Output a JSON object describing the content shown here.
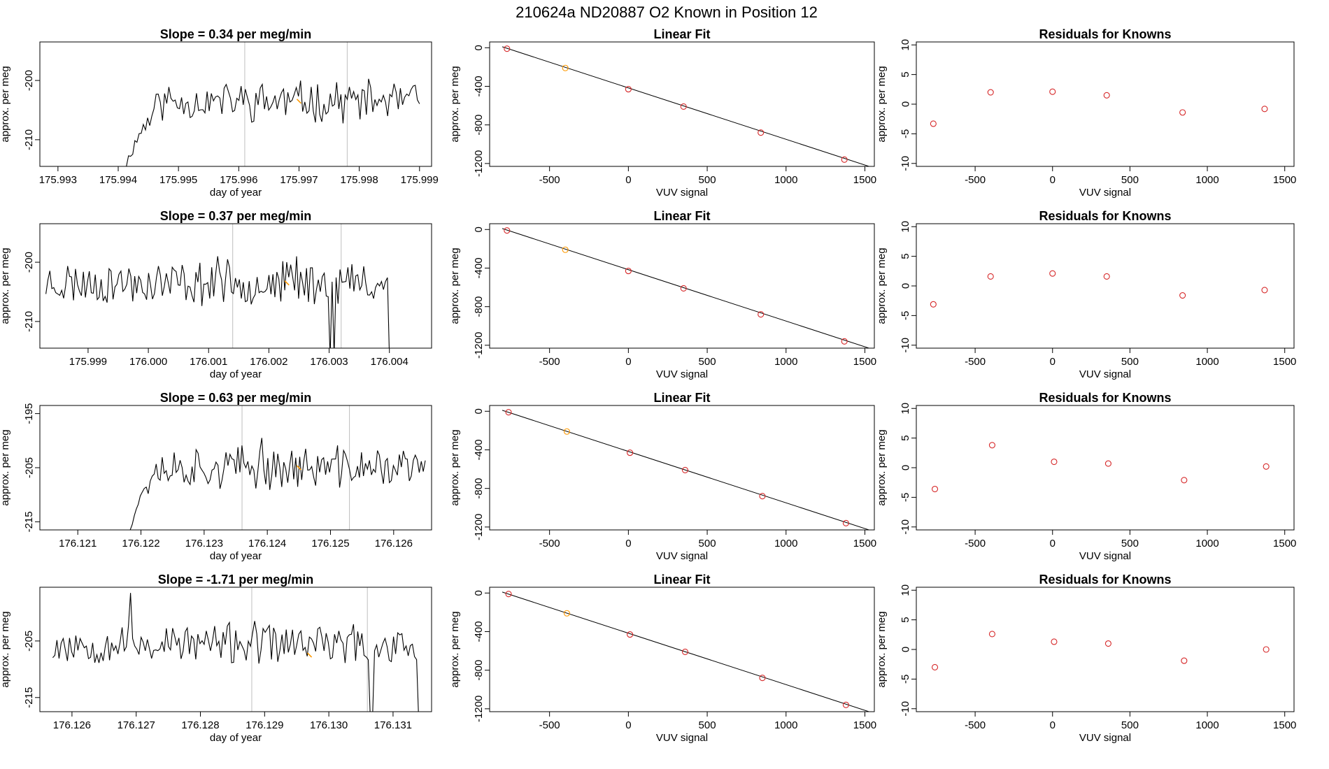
{
  "figure": {
    "suptitle": "210624a     ND20887   O2 Known in Position  12"
  },
  "colors": {
    "line": "#000000",
    "vline": "#bebebe",
    "fit_point": "#d62728",
    "highlight": "#ff9900",
    "box": "#000000"
  },
  "chart_data": [
    {
      "type": "line",
      "row": 0,
      "col": 0,
      "title": "Slope =  0.34  per meg/min",
      "xlabel": "day of year",
      "ylabel": "approx. per meg",
      "xlim": [
        175.9927,
        175.9992
      ],
      "ylim": [
        -214.5,
        -193.5
      ],
      "xticks": [
        175.993,
        175.994,
        175.995,
        175.996,
        175.997,
        175.998,
        175.999
      ],
      "xtick_labels": [
        "175.993",
        "175.994",
        "175.995",
        "175.996",
        "175.997",
        "175.998",
        "175.999"
      ],
      "yticks": [
        -200,
        -210
      ],
      "ytick_labels": [
        "-200",
        "-210"
      ],
      "vlines": [
        175.9961,
        175.9978
      ],
      "highlight_point": [
        175.997,
        -203.5
      ],
      "x_start": 175.9941,
      "x_end": 175.999,
      "n": 140,
      "baseline": -203.5,
      "amplitude": 2.8,
      "ramp": true,
      "ramp_end_frac": 0.12,
      "ramp_start": -216,
      "spikes": [],
      "tail_drop": null,
      "seed": 11
    },
    {
      "type": "line",
      "row": 1,
      "col": 0,
      "title": "Slope =  0.37  per meg/min",
      "xlabel": "day of year",
      "ylabel": "approx. per meg",
      "xlim": [
        175.9982,
        176.0047
      ],
      "ylim": [
        -214.5,
        -193.5
      ],
      "xticks": [
        175.999,
        176.0,
        176.001,
        176.002,
        176.003,
        176.004
      ],
      "xtick_labels": [
        "175.999",
        "176.000",
        "176.001",
        "176.002",
        "176.003",
        "176.004"
      ],
      "yticks": [
        -200,
        -210
      ],
      "ytick_labels": [
        "-200",
        "-210"
      ],
      "vlines": [
        176.0014,
        176.0032
      ],
      "highlight_point": [
        176.0023,
        -203.5
      ],
      "x_start": 175.9983,
      "x_end": 176.004,
      "n": 175,
      "baseline": -203.5,
      "amplitude": 3.0,
      "ramp": false,
      "spikes": [
        [
          0.83,
          -216
        ],
        [
          0.84,
          -216
        ],
        [
          0.5,
          -199
        ],
        [
          0.73,
          -199
        ]
      ],
      "tail_drop": -216,
      "seed": 23
    },
    {
      "type": "line",
      "row": 2,
      "col": 0,
      "title": "Slope =  0.63  per meg/min",
      "xlabel": "day of year",
      "ylabel": "approx. per meg",
      "xlim": [
        176.1204,
        176.1266
      ],
      "ylim": [
        -216.5,
        -193.5
      ],
      "xticks": [
        176.121,
        176.122,
        176.123,
        176.124,
        176.125,
        176.126
      ],
      "xtick_labels": [
        "176.121",
        "176.122",
        "176.123",
        "176.124",
        "176.125",
        "176.126"
      ],
      "yticks": [
        -195,
        -205,
        -215
      ],
      "ytick_labels": [
        "-195",
        "-205",
        "-215"
      ],
      "vlines": [
        176.1236,
        176.1253
      ],
      "highlight_point": [
        176.1245,
        -205.0
      ],
      "x_start": 176.1218,
      "x_end": 176.1265,
      "n": 150,
      "baseline": -205.0,
      "amplitude": 3.2,
      "ramp": true,
      "ramp_end_frac": 0.09,
      "ramp_start": -218,
      "spikes": [
        [
          0.45,
          -199.5
        ]
      ],
      "tail_drop": null,
      "seed": 37
    },
    {
      "type": "line",
      "row": 3,
      "col": 0,
      "title": "Slope =  -1.71  per meg/min",
      "xlabel": "day of year",
      "ylabel": "approx. per meg",
      "xlim": [
        176.1255,
        176.1316
      ],
      "ylim": [
        -217.5,
        -195.5
      ],
      "xticks": [
        176.126,
        176.127,
        176.128,
        176.129,
        176.13,
        176.131
      ],
      "xtick_labels": [
        "176.126",
        "176.127",
        "176.128",
        "176.129",
        "176.130",
        "176.131"
      ],
      "yticks": [
        -205,
        -215
      ],
      "ytick_labels": [
        "-205",
        "-215"
      ],
      "vlines": [
        176.1288,
        176.1306
      ],
      "highlight_point": [
        176.1297,
        -207.5
      ],
      "x_start": 176.1257,
      "x_end": 176.1314,
      "n": 175,
      "baseline": -205.5,
      "amplitude": 3.0,
      "ramp": false,
      "spikes": [
        [
          0.21,
          -196.5
        ],
        [
          0.87,
          -219
        ],
        [
          0.875,
          -219
        ]
      ],
      "tail_drop": -219,
      "seed": 53
    },
    {
      "type": "scatter",
      "row": 0,
      "col": 1,
      "title": "Linear Fit",
      "xlabel": "VUV signal",
      "ylabel": "approx. per meg",
      "xlim": [
        -880,
        1560
      ],
      "ylim": [
        -1230,
        60
      ],
      "xticks": [
        -500,
        0,
        500,
        1000,
        1500
      ],
      "xtick_labels": [
        "-500",
        "0",
        "500",
        "1000",
        "1500"
      ],
      "yticks": [
        0,
        -400,
        -800,
        -1200
      ],
      "ytick_labels": [
        "0",
        "-400",
        "-800",
        "-1200"
      ],
      "x": [
        -770,
        -400,
        0,
        350,
        840,
        1370
      ],
      "y": [
        -10,
        -210,
        -430,
        -610,
        -880,
        -1160
      ],
      "highlight_index": 1,
      "fit_line": {
        "x": [
          -800,
          1545
        ],
        "y": [
          10,
          -1240
        ]
      }
    },
    {
      "type": "scatter",
      "row": 1,
      "col": 1,
      "title": "Linear Fit",
      "xlabel": "VUV signal",
      "ylabel": "approx. per meg",
      "xlim": [
        -880,
        1560
      ],
      "ylim": [
        -1230,
        60
      ],
      "xticks": [
        -500,
        0,
        500,
        1000,
        1500
      ],
      "xtick_labels": [
        "-500",
        "0",
        "500",
        "1000",
        "1500"
      ],
      "yticks": [
        0,
        -400,
        -800,
        -1200
      ],
      "ytick_labels": [
        "0",
        "-400",
        "-800",
        "-1200"
      ],
      "x": [
        -770,
        -400,
        0,
        350,
        840,
        1370
      ],
      "y": [
        -10,
        -210,
        -430,
        -610,
        -880,
        -1160
      ],
      "highlight_index": 1,
      "fit_line": {
        "x": [
          -800,
          1545
        ],
        "y": [
          10,
          -1240
        ]
      }
    },
    {
      "type": "scatter",
      "row": 2,
      "col": 1,
      "title": "Linear Fit",
      "xlabel": "VUV signal",
      "ylabel": "approx. per meg",
      "xlim": [
        -880,
        1560
      ],
      "ylim": [
        -1230,
        60
      ],
      "xticks": [
        -500,
        0,
        500,
        1000,
        1500
      ],
      "xtick_labels": [
        "-500",
        "0",
        "500",
        "1000",
        "1500"
      ],
      "yticks": [
        0,
        -400,
        -800,
        -1200
      ],
      "ytick_labels": [
        "0",
        "-400",
        "-800",
        "-1200"
      ],
      "x": [
        -760,
        -390,
        10,
        360,
        850,
        1380
      ],
      "y": [
        -10,
        -210,
        -430,
        -610,
        -880,
        -1160
      ],
      "highlight_index": 1,
      "fit_line": {
        "x": [
          -800,
          1545
        ],
        "y": [
          10,
          -1240
        ]
      }
    },
    {
      "type": "scatter",
      "row": 3,
      "col": 1,
      "title": "Linear Fit",
      "xlabel": "VUV signal",
      "ylabel": "approx. per meg",
      "xlim": [
        -880,
        1560
      ],
      "ylim": [
        -1230,
        60
      ],
      "xticks": [
        -500,
        0,
        500,
        1000,
        1500
      ],
      "xtick_labels": [
        "-500",
        "0",
        "500",
        "1000",
        "1500"
      ],
      "yticks": [
        0,
        -400,
        -800,
        -1200
      ],
      "ytick_labels": [
        "0",
        "-400",
        "-800",
        "-1200"
      ],
      "x": [
        -760,
        -390,
        10,
        360,
        850,
        1380
      ],
      "y": [
        -10,
        -210,
        -430,
        -610,
        -880,
        -1160
      ],
      "highlight_index": 1,
      "fit_line": {
        "x": [
          -800,
          1545
        ],
        "y": [
          10,
          -1240
        ]
      }
    },
    {
      "type": "scatter",
      "row": 0,
      "col": 2,
      "title": "Residuals for Knowns",
      "xlabel": "VUV signal",
      "ylabel": "approx. per meg",
      "xlim": [
        -880,
        1560
      ],
      "ylim": [
        -10.5,
        10.5
      ],
      "xticks": [
        -500,
        0,
        500,
        1000,
        1500
      ],
      "xtick_labels": [
        "-500",
        "0",
        "500",
        "1000",
        "1500"
      ],
      "yticks": [
        10,
        5,
        0,
        -5,
        -10
      ],
      "ytick_labels": [
        "10",
        "5",
        "0",
        "-5",
        "-10"
      ],
      "x": [
        -770,
        -400,
        0,
        350,
        840,
        1370
      ],
      "y": [
        -3.3,
        2.0,
        2.1,
        1.5,
        -1.4,
        -0.8
      ]
    },
    {
      "type": "scatter",
      "row": 1,
      "col": 2,
      "title": "Residuals for Knowns",
      "xlabel": "VUV signal",
      "ylabel": "approx. per meg",
      "xlim": [
        -880,
        1560
      ],
      "ylim": [
        -10.5,
        10.5
      ],
      "xticks": [
        -500,
        0,
        500,
        1000,
        1500
      ],
      "xtick_labels": [
        "-500",
        "0",
        "500",
        "1000",
        "1500"
      ],
      "yticks": [
        10,
        5,
        0,
        -5,
        -10
      ],
      "ytick_labels": [
        "10",
        "5",
        "0",
        "-5",
        "-10"
      ],
      "x": [
        -770,
        -400,
        0,
        350,
        840,
        1370
      ],
      "y": [
        -3.1,
        1.6,
        2.1,
        1.6,
        -1.6,
        -0.7
      ]
    },
    {
      "type": "scatter",
      "row": 2,
      "col": 2,
      "title": "Residuals for Knowns",
      "xlabel": "VUV signal",
      "ylabel": "approx. per meg",
      "xlim": [
        -880,
        1560
      ],
      "ylim": [
        -10.5,
        10.5
      ],
      "xticks": [
        -500,
        0,
        500,
        1000,
        1500
      ],
      "xtick_labels": [
        "-500",
        "0",
        "500",
        "1000",
        "1500"
      ],
      "yticks": [
        10,
        5,
        0,
        -5,
        -10
      ],
      "ytick_labels": [
        "10",
        "5",
        "0",
        "-5",
        "-10"
      ],
      "x": [
        -760,
        -390,
        10,
        360,
        850,
        1380
      ],
      "y": [
        -3.6,
        3.8,
        1.0,
        0.7,
        -2.1,
        0.2
      ]
    },
    {
      "type": "scatter",
      "row": 3,
      "col": 2,
      "title": "Residuals for Knowns",
      "xlabel": "VUV signal",
      "ylabel": "approx. per meg",
      "xlim": [
        -880,
        1560
      ],
      "ylim": [
        -10.5,
        10.5
      ],
      "xticks": [
        -500,
        0,
        500,
        1000,
        1500
      ],
      "xtick_labels": [
        "-500",
        "0",
        "500",
        "1000",
        "1500"
      ],
      "yticks": [
        10,
        5,
        0,
        -5,
        -10
      ],
      "ytick_labels": [
        "10",
        "5",
        "0",
        "-5",
        "-10"
      ],
      "x": [
        -760,
        -390,
        10,
        360,
        850,
        1380
      ],
      "y": [
        -3.0,
        2.6,
        1.3,
        1.0,
        -1.9,
        0.0
      ]
    }
  ]
}
